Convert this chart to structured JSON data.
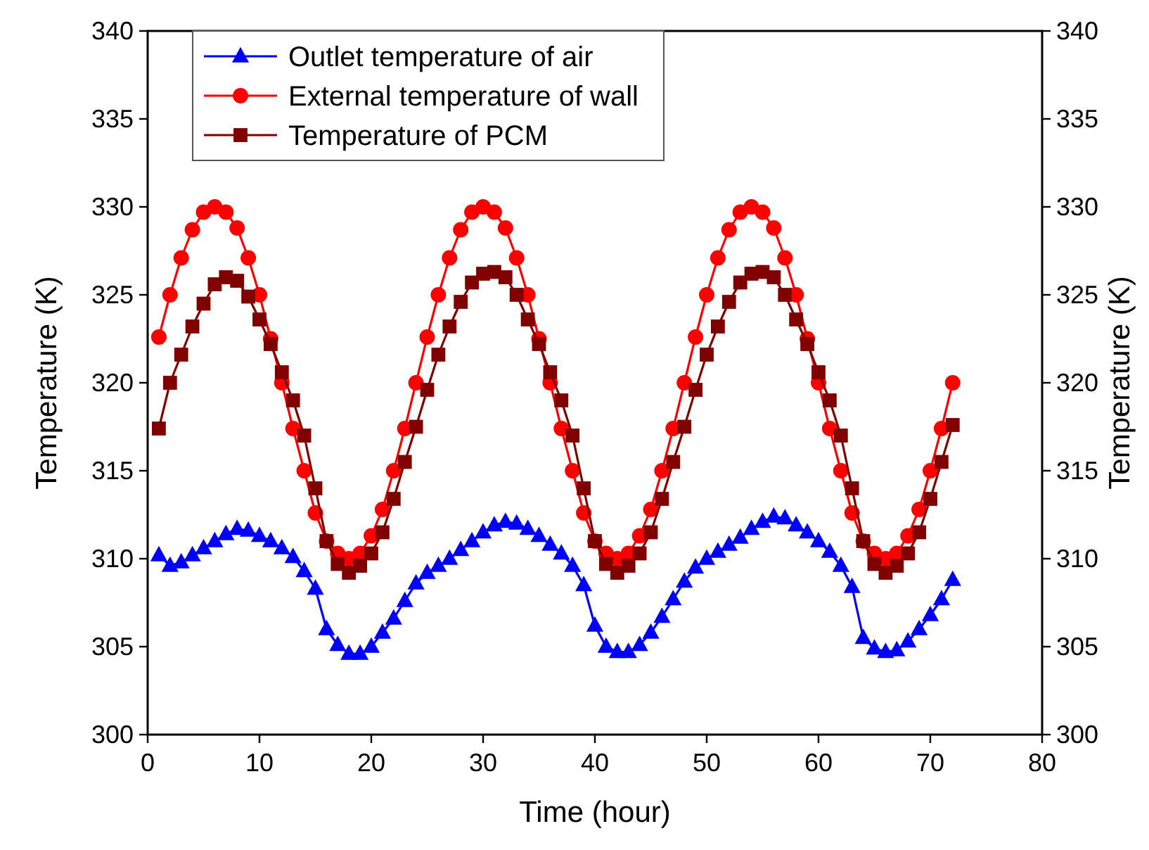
{
  "chart_data": {
    "type": "line",
    "xlabel": "Time (hour)",
    "ylabel": "Temperature (K)",
    "y2label": "Temperature (K)",
    "x": [
      1,
      2,
      3,
      4,
      5,
      6,
      7,
      8,
      9,
      10,
      11,
      12,
      13,
      14,
      15,
      16,
      17,
      18,
      19,
      20,
      21,
      22,
      23,
      24,
      25,
      26,
      27,
      28,
      29,
      30,
      31,
      32,
      33,
      34,
      35,
      36,
      37,
      38,
      39,
      40,
      41,
      42,
      43,
      44,
      45,
      46,
      47,
      48,
      49,
      50,
      51,
      52,
      53,
      54,
      55,
      56,
      57,
      58,
      59,
      60,
      61,
      62,
      63,
      64,
      65,
      66,
      67,
      68,
      69,
      70,
      71,
      72
    ],
    "series": [
      {
        "name": "Outlet temperature of air",
        "color": "#0000ff",
        "marker": "triangle",
        "values": [
          310.2,
          309.6,
          309.8,
          310.2,
          310.6,
          311,
          311.4,
          311.7,
          311.6,
          311.3,
          311,
          310.6,
          310.1,
          309.3,
          308.3,
          306,
          305.1,
          304.6,
          304.6,
          305,
          305.8,
          306.6,
          307.6,
          308.6,
          309.2,
          309.6,
          310,
          310.5,
          311,
          311.5,
          311.9,
          312.1,
          312,
          311.7,
          311.3,
          310.8,
          310.3,
          309.6,
          308.5,
          306.2,
          305,
          304.7,
          304.7,
          305.1,
          305.8,
          306.7,
          307.7,
          308.7,
          309.5,
          310,
          310.4,
          310.8,
          311.2,
          311.7,
          312.1,
          312.4,
          312.3,
          311.9,
          311.5,
          311,
          310.4,
          309.6,
          308.4,
          305.5,
          304.9,
          304.7,
          304.8,
          305.3,
          306,
          306.8,
          307.7,
          308.8
        ]
      },
      {
        "name": "External temperature of wall",
        "color": "#ff0000",
        "marker": "circle",
        "values": [
          322.6,
          325,
          327.1,
          328.7,
          329.7,
          330,
          329.7,
          328.8,
          327.1,
          325,
          322.5,
          320,
          317.4,
          315,
          312.6,
          311,
          310.3,
          310,
          310.3,
          311.3,
          312.8,
          315,
          317.4,
          320,
          322.6,
          325,
          327.1,
          328.7,
          329.7,
          330,
          329.7,
          328.8,
          327.1,
          325,
          322.5,
          320,
          317.4,
          315,
          312.6,
          311,
          310.3,
          310,
          310.3,
          311.3,
          312.8,
          315,
          317.4,
          320,
          322.6,
          325,
          327.1,
          328.7,
          329.7,
          330,
          329.7,
          328.8,
          327.1,
          325,
          322.5,
          320,
          317.4,
          315,
          312.6,
          311,
          310.3,
          310,
          310.3,
          311.3,
          312.8,
          315,
          317.4,
          320
        ]
      },
      {
        "name": "Temperature of PCM",
        "color": "#800000",
        "marker": "square",
        "values": [
          317.4,
          320,
          321.6,
          323.2,
          324.5,
          325.6,
          326,
          325.8,
          324.9,
          323.6,
          322.2,
          320.6,
          319,
          317,
          314,
          311,
          309.7,
          309.2,
          309.6,
          310.3,
          311.5,
          313.4,
          315.5,
          317.5,
          319.6,
          321.6,
          323.2,
          324.6,
          325.7,
          326.2,
          326.3,
          326,
          325,
          323.6,
          322.2,
          320.6,
          319,
          317,
          314,
          311,
          309.7,
          309.2,
          309.6,
          310.3,
          311.5,
          313.4,
          315.5,
          317.5,
          319.6,
          321.6,
          323.2,
          324.6,
          325.7,
          326.2,
          326.3,
          326,
          325,
          323.6,
          322.2,
          320.6,
          319,
          317,
          314,
          311,
          309.7,
          309.2,
          309.6,
          310.3,
          311.5,
          313.4,
          315.5,
          317.6
        ]
      }
    ],
    "xlim": [
      0,
      80
    ],
    "xticks": [
      0,
      10,
      20,
      30,
      40,
      50,
      60,
      70,
      80
    ],
    "ylim": [
      300,
      340
    ],
    "yticks": [
      300,
      305,
      310,
      315,
      320,
      325,
      330,
      335,
      340
    ],
    "y2lim": [
      300,
      340
    ],
    "y2ticks": [
      300,
      305,
      310,
      315,
      320,
      325,
      330,
      335,
      340
    ],
    "legend": "top left",
    "grid": false,
    "line_style": "solid"
  }
}
